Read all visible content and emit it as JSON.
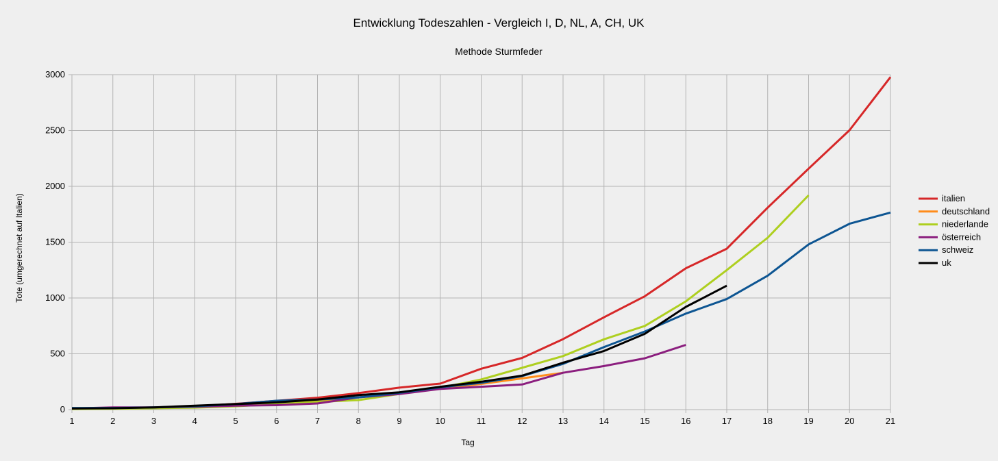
{
  "chart_data": {
    "type": "line",
    "title": "Entwicklung Todeszahlen - Vergleich I, D, NL, A, CH, UK",
    "subtitle": "Methode Sturmfeder",
    "xlabel": "Tag",
    "ylabel": "Tote (umgerechnet auf Italien)",
    "xlim": [
      1,
      21
    ],
    "ylim": [
      0,
      3000
    ],
    "x_ticks": [
      1,
      2,
      3,
      4,
      5,
      6,
      7,
      8,
      9,
      10,
      11,
      12,
      13,
      14,
      15,
      16,
      17,
      18,
      19,
      20,
      21
    ],
    "y_ticks": [
      0,
      500,
      1000,
      1500,
      2000,
      2500,
      3000
    ],
    "grid": true,
    "legend_position": "right",
    "series": [
      {
        "name": "italien",
        "color": "#d62728",
        "x": [
          1,
          2,
          3,
          4,
          5,
          6,
          7,
          8,
          9,
          10,
          11,
          12,
          13,
          14,
          15,
          16,
          17,
          18,
          19,
          20,
          21
        ],
        "values": [
          10,
          12,
          17,
          29,
          52,
          79,
          107,
          148,
          197,
          233,
          366,
          463,
          631,
          827,
          1016,
          1266,
          1441,
          1809,
          2158,
          2503,
          2978
        ]
      },
      {
        "name": "deutschland",
        "color": "#ff8c1a",
        "x": [
          1,
          2,
          3,
          4,
          5,
          6,
          7,
          8,
          9,
          10,
          11,
          12,
          13
        ],
        "values": [
          8,
          12,
          15,
          25,
          38,
          55,
          80,
          110,
          150,
          190,
          230,
          280,
          330
        ]
      },
      {
        "name": "niederlande",
        "color": "#aecf1f",
        "x": [
          1,
          2,
          3,
          4,
          5,
          6,
          7,
          8,
          9,
          10,
          11,
          12,
          13,
          14,
          15,
          16,
          17,
          18,
          19
        ],
        "values": [
          5,
          8,
          12,
          18,
          30,
          50,
          70,
          85,
          140,
          195,
          270,
          375,
          480,
          630,
          750,
          970,
          1250,
          1540,
          1920
        ]
      },
      {
        "name": "österreich",
        "color": "#8b1e7e",
        "x": [
          1,
          2,
          3,
          4,
          5,
          6,
          7,
          8,
          9,
          10,
          11,
          12,
          13,
          14,
          15,
          16
        ],
        "values": [
          10,
          20,
          20,
          25,
          35,
          40,
          55,
          110,
          140,
          185,
          205,
          225,
          330,
          390,
          460,
          580
        ]
      },
      {
        "name": "schweiz",
        "color": "#0d5592",
        "x": [
          1,
          2,
          3,
          4,
          5,
          6,
          7,
          8,
          9,
          10,
          11,
          12,
          13,
          14,
          15,
          16,
          17,
          18,
          19,
          20,
          21
        ],
        "values": [
          15,
          15,
          20,
          30,
          50,
          80,
          90,
          110,
          150,
          200,
          240,
          300,
          410,
          560,
          700,
          860,
          990,
          1200,
          1480,
          1665,
          1765
        ]
      },
      {
        "name": "uk",
        "color": "#000000",
        "x": [
          1,
          2,
          3,
          4,
          5,
          6,
          7,
          8,
          9,
          10,
          11,
          12,
          13,
          14,
          15,
          16,
          17
        ],
        "values": [
          10,
          12,
          20,
          35,
          50,
          65,
          90,
          130,
          155,
          205,
          250,
          305,
          420,
          525,
          680,
          920,
          1110
        ]
      }
    ]
  }
}
